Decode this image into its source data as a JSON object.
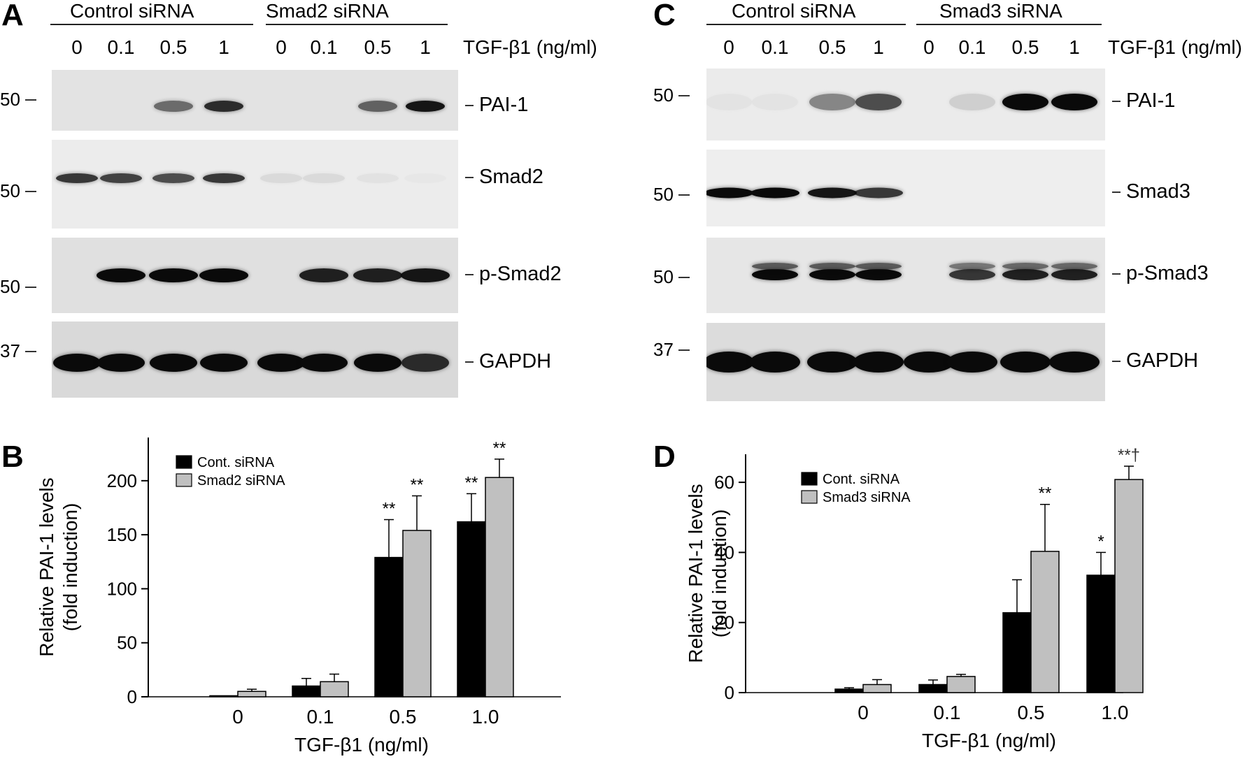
{
  "panels": {
    "A": {
      "label": "A",
      "groups": [
        "Control siRNA",
        "Smad2 siRNA"
      ],
      "lanes": [
        "0",
        "0.1",
        "0.5",
        "1",
        "0",
        "0.1",
        "0.5",
        "1"
      ],
      "treatment": "TGF-β1 (ng/ml)",
      "blots": [
        {
          "protein": "PAI-1",
          "mw": "50",
          "intensity": [
            0,
            0,
            0.55,
            0.85,
            0,
            0,
            0.6,
            0.95
          ]
        },
        {
          "protein": "Smad2",
          "mw": "50",
          "intensity": [
            0.8,
            0.75,
            0.7,
            0.8,
            0.08,
            0.08,
            0.04,
            0.02
          ]
        },
        {
          "protein": "p-Smad2",
          "mw": "50",
          "intensity": [
            0,
            1,
            1,
            1,
            0,
            0.9,
            0.9,
            0.95
          ]
        },
        {
          "protein": "GAPDH",
          "mw": "37",
          "intensity": [
            1,
            1,
            1,
            1,
            1,
            1,
            1,
            0.85
          ]
        }
      ]
    },
    "C": {
      "label": "C",
      "groups": [
        "Control siRNA",
        "Smad3 siRNA"
      ],
      "lanes": [
        "0",
        "0.1",
        "0.5",
        "1",
        "0",
        "0.1",
        "0.5",
        "1"
      ],
      "treatment": "TGF-β1 (ng/ml)",
      "blots": [
        {
          "protein": "PAI-1",
          "mw": "50",
          "intensity": [
            0.03,
            0.03,
            0.45,
            0.7,
            0,
            0.12,
            1,
            1
          ]
        },
        {
          "protein": "Smad3",
          "mw": "50",
          "intensity": [
            1,
            1,
            0.95,
            0.8,
            0,
            0,
            0,
            0
          ]
        },
        {
          "protein": "p-Smad3",
          "mw": "50",
          "intensity": [
            0,
            1,
            1,
            1,
            0,
            0.8,
            0.9,
            0.9
          ]
        },
        {
          "protein": "GAPDH",
          "mw": "37",
          "intensity": [
            1,
            1,
            1,
            1,
            1,
            1,
            1,
            1
          ]
        }
      ]
    }
  },
  "chart_data": [
    {
      "panel": "B",
      "type": "bar",
      "categories": [
        "0",
        "0.1",
        "0.5",
        "1.0"
      ],
      "series": [
        {
          "name": "Cont. siRNA",
          "color": "#000000",
          "values": [
            1,
            10,
            129,
            162
          ],
          "errors": [
            0,
            7,
            35,
            26
          ]
        },
        {
          "name": "Smad2 siRNA",
          "color": "#c0c0c0",
          "values": [
            5,
            14,
            154,
            203
          ],
          "errors": [
            2,
            7,
            32,
            17
          ]
        }
      ],
      "significance": [
        [
          "",
          "",
          "**",
          "**"
        ],
        [
          "",
          "",
          "**",
          "**"
        ]
      ],
      "xlabel": "TGF-β1 (ng/ml)",
      "ylabel": [
        "Relative PAI-1 levels",
        "(fold induction)"
      ],
      "yticks": [
        0,
        50,
        100,
        150,
        200
      ],
      "ylim": [
        0,
        240
      ],
      "legend": "top-left"
    },
    {
      "panel": "D",
      "type": "bar",
      "categories": [
        "0",
        "0.1",
        "0.5",
        "1.0"
      ],
      "series": [
        {
          "name": "Cont. siRNA",
          "color": "#000000",
          "values": [
            1,
            2.3,
            22.8,
            33.5
          ],
          "errors": [
            0.4,
            1.3,
            9.4,
            6.5
          ]
        },
        {
          "name": "Smad3 siRNA",
          "color": "#c0c0c0",
          "values": [
            2.3,
            4.6,
            40.3,
            60.8
          ],
          "errors": [
            1.4,
            0.6,
            13.4,
            3.8
          ]
        }
      ],
      "significance": [
        [
          "",
          "",
          "",
          "*"
        ],
        [
          "",
          "",
          "**",
          "**†"
        ]
      ],
      "xlabel": "TGF-β1 (ng/ml)",
      "ylabel": [
        "Relative PAI-1 levels",
        "(fold induction)"
      ],
      "yticks": [
        0,
        20,
        40,
        60
      ],
      "ylim": [
        0,
        68
      ],
      "legend": "top-left"
    }
  ]
}
